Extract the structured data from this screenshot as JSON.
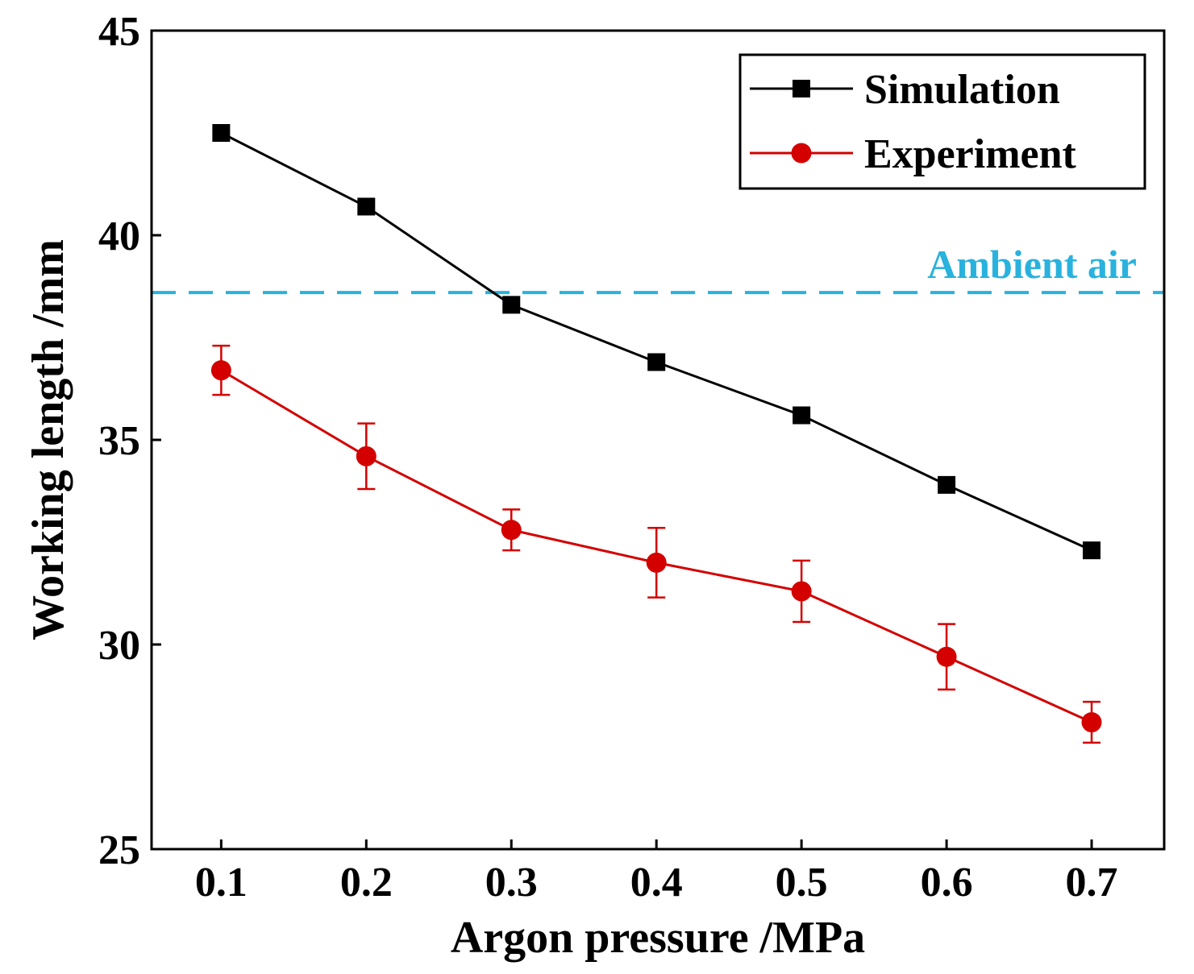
{
  "chart_data": {
    "type": "line",
    "xlabel": "Argon pressure /MPa",
    "ylabel": "Working length /mm",
    "xlim": [
      0.052,
      0.75
    ],
    "ylim": [
      25,
      45
    ],
    "x_ticks": [
      "0.1",
      "0.2",
      "0.3",
      "0.4",
      "0.5",
      "0.6",
      "0.7"
    ],
    "y_ticks": [
      "25",
      "30",
      "35",
      "40",
      "45"
    ],
    "grid": false,
    "legend_position": "top-right",
    "series": [
      {
        "name": "Simulation",
        "color": "#000000",
        "marker": "square",
        "x": [
          0.1,
          0.2,
          0.3,
          0.4,
          0.5,
          0.6,
          0.7
        ],
        "y": [
          42.5,
          40.7,
          38.3,
          36.9,
          35.6,
          33.9,
          32.3
        ]
      },
      {
        "name": "Experiment",
        "color": "#d40000",
        "marker": "circle",
        "x": [
          0.1,
          0.2,
          0.3,
          0.4,
          0.5,
          0.6,
          0.7
        ],
        "y": [
          36.7,
          34.6,
          32.8,
          32.0,
          31.3,
          29.7,
          28.1
        ],
        "error": [
          0.6,
          0.8,
          0.5,
          0.85,
          0.75,
          0.8,
          0.5
        ]
      }
    ],
    "reference_line": {
      "label": "Ambient air",
      "y": 38.6,
      "color": "#29b2dd",
      "style": "dashed"
    }
  }
}
